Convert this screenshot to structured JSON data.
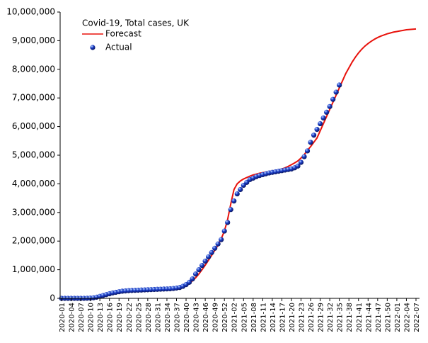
{
  "chart_data": {
    "type": "line",
    "title": "Covid-19, Total cases, UK",
    "categories": [
      "2020-01",
      null,
      null,
      "2020-04",
      null,
      null,
      "2020-07",
      null,
      null,
      "2020-10",
      null,
      null,
      "2020-13",
      null,
      null,
      "2020-16",
      null,
      null,
      "2020-19",
      null,
      null,
      "2020-22",
      null,
      null,
      "2020-25",
      null,
      null,
      "2020-28",
      null,
      null,
      "2020-31",
      null,
      null,
      "2020-34",
      null,
      null,
      "2020-37",
      null,
      null,
      "2020-40",
      null,
      null,
      "2020-43",
      null,
      null,
      "2020-46",
      null,
      null,
      "2020-49",
      null,
      null,
      "2020-52",
      null,
      null,
      "2021-02",
      null,
      null,
      "2021-05",
      null,
      null,
      "2021-08",
      null,
      null,
      "2021-11",
      null,
      null,
      "2021-14",
      null,
      null,
      "2021-17",
      null,
      null,
      "2021-20",
      null,
      null,
      "2021-23",
      null,
      null,
      "2021-26",
      null,
      null,
      "2021-29",
      null,
      null,
      "2021-32",
      null,
      null,
      "2021-35",
      null,
      null,
      "2021-38",
      null,
      null,
      "2021-41",
      null,
      null,
      "2021-44",
      null,
      null,
      "2021-47",
      null,
      null,
      "2021-50",
      null,
      null,
      "2022-01",
      null,
      null,
      "2022-04",
      null,
      null,
      "2022-07"
    ],
    "series": [
      {
        "name": "Forecast",
        "type": "line",
        "color": "#e8120c",
        "values": [
          0,
          0,
          0,
          0,
          0,
          0,
          5000,
          10000,
          20000,
          30000,
          50000,
          70000,
          100000,
          130000,
          160000,
          190000,
          220000,
          240000,
          260000,
          270000,
          280000,
          285000,
          290000,
          295000,
          300000,
          305000,
          305000,
          310000,
          310000,
          315000,
          320000,
          320000,
          325000,
          330000,
          335000,
          345000,
          360000,
          380000,
          410000,
          450000,
          520000,
          610000,
          720000,
          850000,
          1000000,
          1160000,
          1330000,
          1500000,
          1680000,
          1860000,
          2080000,
          2350000,
          2750000,
          3300000,
          3800000,
          4000000,
          4100000,
          4170000,
          4220000,
          4270000,
          4310000,
          4340000,
          4370000,
          4390000,
          4410000,
          4430000,
          4450000,
          4470000,
          4490000,
          4520000,
          4560000,
          4610000,
          4670000,
          4730000,
          4800000,
          4900000,
          5020000,
          5170000,
          5300000,
          5450000,
          5600000,
          5850000,
          6100000,
          6350000,
          6600000,
          6850000,
          7100000,
          7350000,
          7600000,
          7850000,
          8050000,
          8250000,
          8420000,
          8570000,
          8700000,
          8810000,
          8900000,
          8980000,
          9050000,
          9110000,
          9160000,
          9200000,
          9240000,
          9270000,
          9300000,
          9320000,
          9340000,
          9360000,
          9380000,
          9390000,
          9400000,
          9410000
        ]
      },
      {
        "name": "Actual",
        "type": "scatter",
        "color": "#1a3cc8",
        "values": [
          0,
          0,
          0,
          0,
          0,
          0,
          0,
          2000,
          5000,
          10000,
          20000,
          40000,
          70000,
          100000,
          130000,
          160000,
          190000,
          210000,
          230000,
          250000,
          260000,
          270000,
          275000,
          280000,
          285000,
          290000,
          295000,
          300000,
          305000,
          310000,
          315000,
          320000,
          325000,
          330000,
          335000,
          345000,
          360000,
          380000,
          420000,
          480000,
          560000,
          680000,
          850000,
          1000000,
          1150000,
          1300000,
          1450000,
          1600000,
          1750000,
          1900000,
          2050000,
          2350000,
          2650000,
          3100000,
          3400000,
          3650000,
          3800000,
          3950000,
          4050000,
          4150000,
          4200000,
          4250000,
          4290000,
          4320000,
          4350000,
          4380000,
          4400000,
          4420000,
          4440000,
          4460000,
          4480000,
          4500000,
          4520000,
          4560000,
          4620000,
          4750000,
          4950000,
          5150000,
          5450000,
          5700000,
          5900000,
          6100000,
          6300000,
          6500000,
          6700000,
          6950000,
          7200000,
          7450000,
          null,
          null,
          null,
          null,
          null,
          null,
          null,
          null,
          null,
          null,
          null,
          null,
          null,
          null,
          null,
          null,
          null,
          null,
          null,
          null,
          null,
          null,
          null,
          null
        ]
      }
    ],
    "ylim": [
      0,
      10000000
    ],
    "yticks": [
      0,
      {
        "value": 1000000,
        "label": "1,000,000"
      },
      {
        "value": 2000000,
        "label": "2,000,000"
      },
      {
        "value": 3000000,
        "label": "3,000,000"
      },
      {
        "value": 4000000,
        "label": "4,000,000"
      },
      {
        "value": 5000000,
        "label": "5,000,000"
      },
      {
        "value": 6000000,
        "label": "6,000,000"
      },
      {
        "value": 7000000,
        "label": "7,000,000"
      },
      {
        "value": 8000000,
        "label": "8,000,000"
      },
      {
        "value": 9000000,
        "label": "9,000,000"
      },
      {
        "value": 10000000,
        "label": "10,000,000"
      }
    ],
    "grid": false,
    "legend": "top-left"
  }
}
